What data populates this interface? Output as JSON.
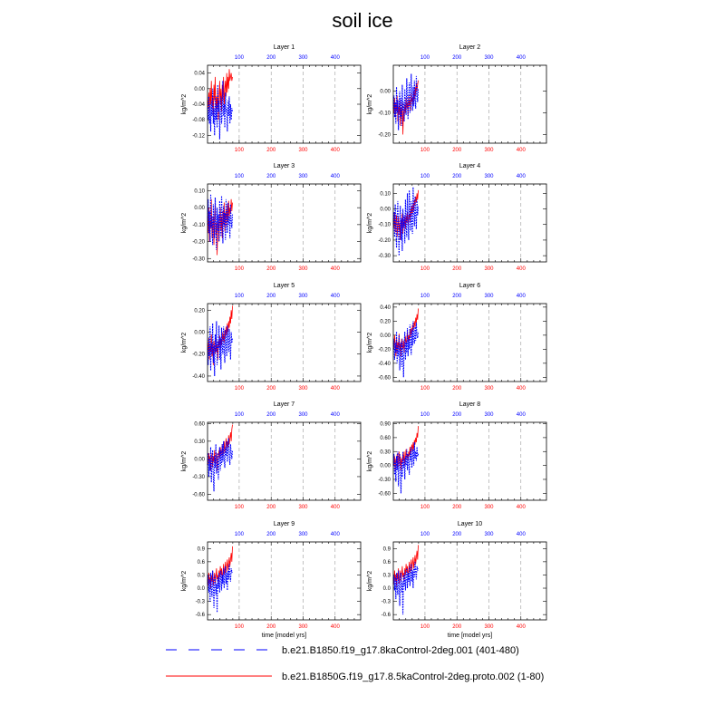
{
  "page": {
    "title": "soil ice"
  },
  "colors": {
    "exp1": "#0000ff",
    "exp2": "#ff0000",
    "grid": "#9a9a9a",
    "axis": "#000000"
  },
  "chart_data": {
    "type": "line",
    "title": "soil ice",
    "xlabel": "time [model yrs]",
    "ylabel": "kg/m^2",
    "xlim": [
      1,
      480
    ],
    "xticks": [
      100,
      200,
      300,
      400
    ],
    "xtick_labels": [
      "100",
      "200",
      "300",
      "400"
    ],
    "series_names": [
      "b.e21.B1850.f19_g17.8kaControl-2deg.001 (401-480)",
      "b.e21.B1850G.f19_g17.8.5kaControl-2deg.proto.002 (1-80)"
    ],
    "panels": [
      {
        "title": "Layer 1",
        "ylim": [
          -0.14,
          0.06
        ],
        "yticks": [
          0.04,
          0.0,
          -0.04,
          -0.08,
          -0.12
        ],
        "ytick_labels": [
          "0.04",
          "0.00",
          "-0.04",
          "-0.08",
          "-0.12"
        ],
        "blue": [
          -0.05,
          -0.08,
          -0.02,
          -0.09,
          -0.04,
          -0.11,
          -0.03,
          -0.07,
          0.0,
          -0.09,
          -0.05,
          -0.12,
          -0.02,
          -0.08,
          -0.04,
          -0.1,
          0.01,
          -0.06,
          -0.03,
          -0.13,
          -0.05,
          -0.02,
          -0.09,
          -0.06,
          0.02,
          -0.07,
          -0.04,
          -0.1,
          -0.01,
          -0.06,
          -0.05,
          -0.11,
          -0.03,
          -0.07,
          -0.02,
          -0.09,
          -0.04,
          -0.08,
          -0.05,
          -0.06
        ],
        "red": [
          -0.03,
          -0.05,
          -0.01,
          -0.06,
          0.0,
          -0.04,
          0.02,
          -0.05,
          -0.02,
          -0.07,
          0.01,
          -0.03,
          0.03,
          -0.06,
          -0.02,
          -0.05,
          0.0,
          -0.08,
          -0.03,
          0.02,
          -0.04,
          0.0,
          -0.06,
          0.01,
          -0.03,
          0.03,
          -0.05,
          0.0,
          0.02,
          -0.02,
          0.04,
          -0.01,
          0.03,
          0.0,
          0.05,
          0.02,
          0.03,
          0.04,
          0.02,
          0.03
        ]
      },
      {
        "title": "Layer 2",
        "ylim": [
          -0.24,
          0.12
        ],
        "yticks": [
          0.0,
          -0.1,
          -0.2
        ],
        "ytick_labels": [
          "0.00",
          "-0.10",
          "-0.20"
        ],
        "blue": [
          -0.08,
          -0.02,
          -0.12,
          -0.05,
          -0.15,
          0.02,
          -0.1,
          -0.04,
          -0.18,
          -0.06,
          0.0,
          -0.12,
          -0.03,
          -0.16,
          0.03,
          -0.09,
          -0.05,
          -0.14,
          0.01,
          -0.07,
          -0.11,
          0.06,
          -0.04,
          -0.13,
          -0.02,
          0.04,
          -0.1,
          -0.06,
          0.08,
          -0.03,
          -0.09,
          0.02,
          -0.07,
          0.05,
          -0.04,
          -0.08,
          0.07,
          0.0,
          -0.05,
          0.01
        ],
        "red": [
          -0.05,
          -0.1,
          -0.03,
          -0.12,
          -0.06,
          -0.09,
          -0.02,
          -0.14,
          -0.07,
          -0.11,
          -0.04,
          -0.16,
          -0.08,
          -0.12,
          -0.05,
          -0.2,
          -0.09,
          -0.13,
          -0.06,
          -0.1,
          -0.03,
          -0.08,
          -0.05,
          -0.11,
          -0.02,
          -0.07,
          -0.04,
          -0.09,
          -0.01,
          -0.05,
          -0.03,
          -0.06,
          0.0,
          -0.04,
          0.02,
          -0.02,
          0.04,
          0.0,
          0.03,
          0.05
        ]
      },
      {
        "title": "Layer 3",
        "ylim": [
          -0.32,
          0.14
        ],
        "yticks": [
          0.1,
          0.0,
          -0.1,
          -0.2,
          -0.3
        ],
        "ytick_labels": [
          "0.10",
          "0.00",
          "-0.10",
          "-0.20",
          "-0.30"
        ],
        "blue": [
          -0.1,
          0.05,
          -0.15,
          -0.02,
          -0.2,
          0.08,
          -0.12,
          -0.05,
          -0.22,
          0.02,
          -0.08,
          -0.18,
          0.06,
          -0.1,
          -0.25,
          0.0,
          -0.14,
          -0.04,
          -0.2,
          0.04,
          -0.09,
          -0.17,
          0.07,
          -0.06,
          -0.21,
          0.01,
          -0.11,
          -0.03,
          -0.19,
          0.05,
          -0.07,
          -0.15,
          0.03,
          -0.1,
          -0.05,
          -0.18,
          0.02,
          -0.08,
          -0.12,
          -0.04
        ],
        "red": [
          -0.05,
          -0.15,
          0.0,
          -0.2,
          -0.08,
          -0.12,
          0.05,
          -0.18,
          -0.1,
          -0.05,
          -0.22,
          -0.06,
          0.02,
          -0.16,
          -0.09,
          -0.28,
          -0.12,
          -0.04,
          -0.2,
          -0.07,
          0.0,
          -0.13,
          -0.05,
          -0.18,
          -0.02,
          -0.1,
          0.03,
          -0.14,
          -0.06,
          -0.01,
          -0.11,
          0.02,
          -0.08,
          0.04,
          -0.05,
          0.0,
          -0.03,
          0.05,
          -0.02,
          0.03
        ]
      },
      {
        "title": "Layer 4",
        "ylim": [
          -0.34,
          0.16
        ],
        "yticks": [
          0.1,
          0.0,
          -0.1,
          -0.2,
          -0.3
        ],
        "ytick_labels": [
          "0.10",
          "0.00",
          "-0.10",
          "-0.20",
          "-0.30"
        ],
        "blue": [
          -0.1,
          -0.02,
          -0.18,
          0.03,
          -0.12,
          -0.25,
          -0.05,
          0.05,
          -0.15,
          -0.3,
          -0.08,
          0.02,
          -0.2,
          -0.06,
          -0.27,
          0.0,
          -0.12,
          -0.04,
          -0.22,
          0.06,
          -0.1,
          -0.18,
          0.1,
          -0.06,
          -0.2,
          0.12,
          -0.03,
          -0.14,
          0.05,
          -0.09,
          -0.16,
          0.14,
          -0.02,
          -0.11,
          0.08,
          -0.05,
          -0.13,
          0.06,
          -0.04,
          0.02
        ],
        "red": [
          -0.06,
          -0.12,
          -0.02,
          -0.15,
          -0.08,
          -0.04,
          -0.18,
          -0.1,
          -0.05,
          -0.14,
          -0.09,
          -0.2,
          -0.07,
          -0.12,
          -0.03,
          -0.16,
          -0.08,
          -0.11,
          -0.05,
          -0.13,
          -0.04,
          -0.09,
          -0.02,
          -0.1,
          -0.06,
          -0.03,
          -0.08,
          0.0,
          -0.05,
          0.02,
          -0.03,
          0.04,
          -0.01,
          0.06,
          0.02,
          0.08,
          0.04,
          0.1,
          0.06,
          0.12
        ]
      },
      {
        "title": "Layer 5",
        "ylim": [
          -0.45,
          0.26
        ],
        "yticks": [
          0.2,
          0.0,
          -0.2,
          -0.4
        ],
        "ytick_labels": [
          "0.20",
          "0.00",
          "-0.20",
          "-0.40"
        ],
        "blue": [
          -0.15,
          -0.3,
          -0.05,
          -0.22,
          0.05,
          -0.35,
          -0.1,
          -0.2,
          0.08,
          -0.28,
          -0.12,
          -0.4,
          -0.02,
          -0.18,
          0.1,
          -0.3,
          -0.08,
          -0.15,
          0.06,
          -0.25,
          -0.05,
          -0.34,
          0.04,
          -0.12,
          -0.2,
          0.05,
          -0.15,
          -0.28,
          0.02,
          -0.1,
          -0.22,
          0.06,
          -0.08,
          -0.18,
          0.03,
          -0.12,
          -0.25,
          0.0,
          -0.1,
          -0.05
        ],
        "red": [
          -0.1,
          -0.2,
          -0.05,
          -0.25,
          -0.12,
          -0.18,
          -0.02,
          -0.22,
          -0.1,
          -0.3,
          -0.08,
          -0.15,
          -0.2,
          -0.05,
          -0.18,
          -0.12,
          -0.25,
          -0.08,
          -0.14,
          -0.03,
          -0.16,
          -0.06,
          -0.12,
          0.0,
          -0.08,
          -0.02,
          -0.1,
          0.02,
          -0.05,
          0.05,
          -0.03,
          0.08,
          0.0,
          0.1,
          0.04,
          0.14,
          0.08,
          0.2,
          0.12,
          0.24
        ]
      },
      {
        "title": "Layer 6",
        "ylim": [
          -0.66,
          0.45
        ],
        "yticks": [
          0.4,
          0.2,
          0.0,
          -0.2,
          -0.4,
          -0.6
        ],
        "ytick_labels": [
          "0.40",
          "0.20",
          "0.00",
          "-0.20",
          "-0.40",
          "-0.60"
        ],
        "blue": [
          -0.2,
          -0.05,
          -0.35,
          -0.1,
          -0.25,
          0.05,
          -0.4,
          -0.15,
          -0.3,
          0.0,
          -0.5,
          -0.2,
          -0.1,
          -0.45,
          -0.05,
          -0.3,
          -0.6,
          -0.15,
          0.05,
          -0.35,
          -0.1,
          -0.25,
          0.1,
          -0.3,
          -0.05,
          -0.2,
          0.15,
          -0.1,
          -0.28,
          0.08,
          -0.15,
          0.2,
          -0.05,
          -0.12,
          0.12,
          -0.08,
          0.18,
          0.0,
          -0.04,
          0.05
        ],
        "red": [
          -0.1,
          -0.2,
          0.0,
          -0.15,
          -0.3,
          -0.05,
          -0.25,
          -0.1,
          -0.18,
          0.02,
          -0.22,
          -0.12,
          -0.3,
          -0.05,
          -0.15,
          -0.2,
          -0.08,
          -0.25,
          -0.1,
          -0.02,
          -0.15,
          -0.05,
          0.05,
          -0.1,
          0.0,
          -0.08,
          0.08,
          -0.02,
          0.1,
          0.02,
          0.15,
          0.05,
          0.12,
          0.2,
          0.1,
          0.25,
          0.18,
          0.3,
          0.22,
          0.38
        ]
      },
      {
        "title": "Layer 7",
        "ylim": [
          -0.7,
          0.62
        ],
        "yticks": [
          0.6,
          0.3,
          0.0,
          -0.3,
          -0.6
        ],
        "ytick_labels": [
          "0.60",
          "0.30",
          "0.00",
          "-0.30",
          "-0.60"
        ],
        "blue": [
          -0.1,
          0.1,
          -0.3,
          0.0,
          -0.2,
          0.2,
          -0.4,
          -0.05,
          0.15,
          -0.3,
          -0.55,
          0.05,
          -0.15,
          0.25,
          -0.25,
          -0.1,
          0.1,
          -0.35,
          0.0,
          0.2,
          -0.2,
          0.15,
          -0.1,
          0.25,
          -0.05,
          0.3,
          0.0,
          -0.15,
          0.2,
          0.05,
          0.3,
          -0.05,
          0.15,
          0.35,
          0.05,
          -0.1,
          0.25,
          0.1,
          0.0,
          0.15
        ],
        "red": [
          0.0,
          -0.1,
          0.1,
          -0.05,
          0.05,
          -0.2,
          0.0,
          0.1,
          -0.15,
          0.05,
          -0.05,
          0.15,
          -0.1,
          0.0,
          0.1,
          -0.2,
          -0.05,
          0.05,
          0.15,
          0.0,
          0.2,
          0.05,
          0.1,
          0.25,
          0.05,
          0.15,
          0.3,
          0.1,
          0.2,
          0.35,
          0.15,
          0.3,
          0.2,
          0.4,
          0.25,
          0.35,
          0.45,
          0.3,
          0.5,
          0.58
        ]
      },
      {
        "title": "Layer 8",
        "ylim": [
          -0.75,
          0.93
        ],
        "yticks": [
          0.9,
          0.6,
          0.3,
          0.0,
          -0.3,
          -0.6
        ],
        "ytick_labels": [
          "0.90",
          "0.60",
          "0.30",
          "0.00",
          "-0.30",
          "-0.60"
        ],
        "blue": [
          0.0,
          0.25,
          -0.2,
          0.1,
          -0.35,
          0.2,
          -0.1,
          0.3,
          -0.45,
          0.05,
          0.25,
          -0.15,
          -0.6,
          0.1,
          -0.25,
          0.3,
          -0.05,
          0.15,
          -0.3,
          0.2,
          0.0,
          0.35,
          -0.1,
          0.25,
          0.05,
          -0.2,
          0.3,
          0.1,
          0.4,
          -0.05,
          0.2,
          0.35,
          0.0,
          0.5,
          0.15,
          0.3,
          0.1,
          0.4,
          0.2,
          0.25
        ],
        "red": [
          0.1,
          0.0,
          0.2,
          -0.1,
          0.15,
          0.05,
          0.25,
          -0.05,
          0.1,
          0.3,
          0.0,
          0.2,
          -0.1,
          0.15,
          0.05,
          0.25,
          0.1,
          0.3,
          0.0,
          0.2,
          0.35,
          0.15,
          0.25,
          0.1,
          0.3,
          0.2,
          0.4,
          0.25,
          0.35,
          0.45,
          0.3,
          0.5,
          0.35,
          0.55,
          0.45,
          0.6,
          0.5,
          0.7,
          0.6,
          0.85
        ]
      },
      {
        "title": "Layer 9",
        "ylim": [
          -0.72,
          1.05
        ],
        "yticks": [
          0.9,
          0.6,
          0.3,
          0.0,
          -0.3,
          -0.6
        ],
        "ytick_labels": [
          "0.9",
          "0.6",
          "0.3",
          "0.0",
          "-0.3",
          "-0.6"
        ],
        "blue": [
          0.1,
          0.3,
          -0.1,
          0.2,
          -0.3,
          0.35,
          0.0,
          -0.2,
          0.4,
          0.05,
          -0.45,
          0.2,
          0.3,
          -0.15,
          0.1,
          -0.55,
          0.25,
          0.0,
          0.35,
          -0.1,
          0.2,
          0.4,
          -0.05,
          0.3,
          0.1,
          0.45,
          0.0,
          0.25,
          0.5,
          0.1,
          0.35,
          -0.05,
          0.4,
          0.2,
          0.55,
          0.3,
          0.15,
          0.45,
          0.35,
          0.4
        ],
        "red": [
          0.2,
          0.05,
          0.35,
          0.1,
          0.25,
          0.0,
          0.3,
          0.15,
          0.4,
          0.05,
          0.2,
          0.35,
          0.1,
          0.25,
          0.45,
          0.2,
          0.3,
          0.1,
          0.4,
          0.25,
          0.5,
          0.3,
          0.45,
          0.2,
          0.35,
          0.55,
          0.3,
          0.45,
          0.6,
          0.35,
          0.5,
          0.65,
          0.4,
          0.55,
          0.7,
          0.5,
          0.65,
          0.8,
          0.6,
          0.95
        ]
      },
      {
        "title": "Layer 10",
        "ylim": [
          -0.72,
          1.05
        ],
        "yticks": [
          0.9,
          0.6,
          0.3,
          0.0,
          -0.3,
          -0.6
        ],
        "ytick_labels": [
          "0.9",
          "0.6",
          "0.3",
          "0.0",
          "-0.3",
          "-0.6"
        ],
        "blue": [
          0.1,
          0.3,
          -0.05,
          0.25,
          -0.25,
          0.35,
          0.05,
          -0.15,
          0.4,
          0.1,
          -0.4,
          0.25,
          0.35,
          -0.1,
          0.15,
          -0.6,
          0.3,
          0.05,
          0.4,
          -0.05,
          0.25,
          0.45,
          0.0,
          0.35,
          0.15,
          0.5,
          0.05,
          0.3,
          0.55,
          0.15,
          0.4,
          0.0,
          0.45,
          0.25,
          0.6,
          0.35,
          0.2,
          0.5,
          0.4,
          0.45
        ],
        "red": [
          0.25,
          0.1,
          0.4,
          0.15,
          0.3,
          0.05,
          0.35,
          0.2,
          0.45,
          0.1,
          0.25,
          0.4,
          0.15,
          0.3,
          0.5,
          0.25,
          0.35,
          0.15,
          0.45,
          0.3,
          0.55,
          0.35,
          0.5,
          0.25,
          0.4,
          0.6,
          0.35,
          0.5,
          0.65,
          0.4,
          0.55,
          0.7,
          0.45,
          0.6,
          0.75,
          0.55,
          0.7,
          0.85,
          0.65,
          0.98
        ]
      }
    ]
  }
}
